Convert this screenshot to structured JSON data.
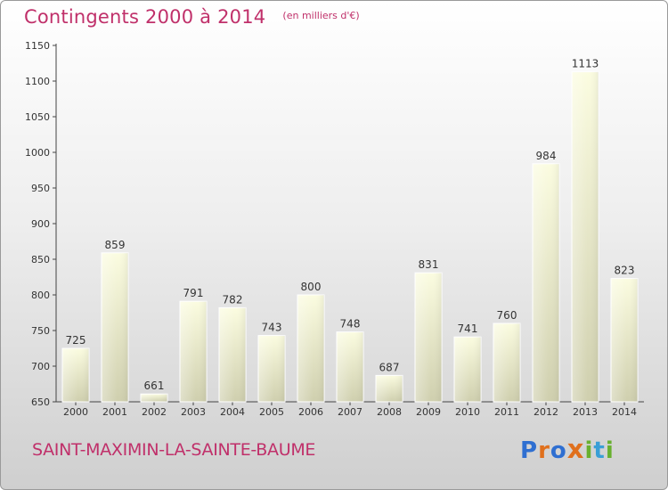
{
  "header": {
    "title": "Contingents 2000 à 2014",
    "unit": "(en milliers d'€)"
  },
  "footer": {
    "city": "SAINT-MAXIMIN-LA-SAINTE-BAUME",
    "logo_letters": [
      "P",
      "r",
      "o",
      "x",
      "i",
      "t",
      "i"
    ]
  },
  "colors": {
    "title": "#c0306a",
    "bar_top": "#fbfce0",
    "bar_bottom": "#cfcfae",
    "axis": "#444444"
  },
  "chart_data": {
    "type": "bar",
    "categories": [
      "2000",
      "2001",
      "2002",
      "2003",
      "2004",
      "2005",
      "2006",
      "2007",
      "2008",
      "2009",
      "2010",
      "2011",
      "2012",
      "2013",
      "2014"
    ],
    "values": [
      725,
      859,
      661,
      791,
      782,
      743,
      800,
      748,
      687,
      831,
      741,
      760,
      984,
      1113,
      823
    ],
    "title": "Contingents 2000 à 2014",
    "ylim": [
      650,
      1150
    ],
    "yticks": [
      650,
      700,
      750,
      800,
      850,
      900,
      950,
      1000,
      1050,
      1100,
      1150
    ],
    "grid": false,
    "legend": "none"
  }
}
